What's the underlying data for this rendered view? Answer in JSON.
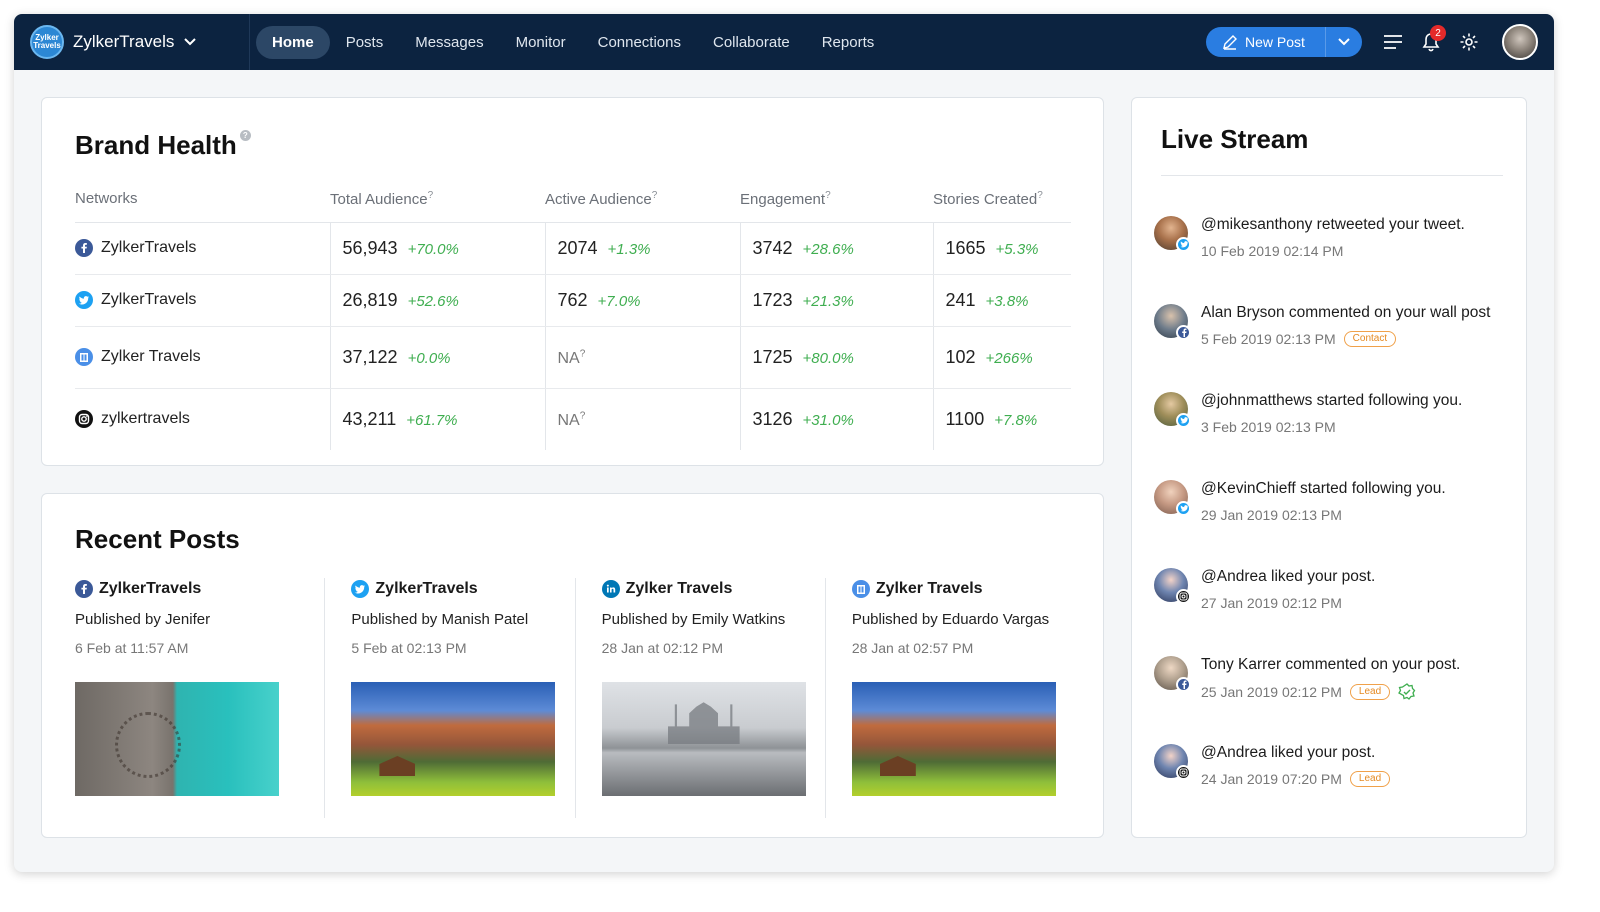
{
  "app": {
    "logo_text": "Zylker Travels",
    "name": "ZylkerTravels"
  },
  "nav": {
    "items": [
      {
        "label": "Home",
        "active": true
      },
      {
        "label": "Posts"
      },
      {
        "label": "Messages"
      },
      {
        "label": "Monitor"
      },
      {
        "label": "Connections"
      },
      {
        "label": "Collaborate"
      },
      {
        "label": "Reports"
      }
    ],
    "new_post_label": "New Post",
    "notifications_count": "2"
  },
  "brand_health": {
    "title": "Brand Health",
    "headers": {
      "networks": "Networks",
      "total_audience": "Total Audience",
      "active_audience": "Active Audience",
      "engagement": "Engagement",
      "stories_created": "Stories Created",
      "help_mark": "?"
    },
    "rows": [
      {
        "network": "ZylkerTravels",
        "icon": "facebook-icon",
        "total": "56,943",
        "total_pct": "+70.0%",
        "active": "2074",
        "active_pct": "+1.3%",
        "engagement": "3742",
        "engagement_pct": "+28.6%",
        "stories": "1665",
        "stories_pct": "+5.3%"
      },
      {
        "network": "ZylkerTravels",
        "icon": "twitter-icon",
        "total": "26,819",
        "total_pct": "+52.6%",
        "active": "762",
        "active_pct": "+7.0%",
        "engagement": "1723",
        "engagement_pct": "+21.3%",
        "stories": "241",
        "stories_pct": "+3.8%"
      },
      {
        "network": "Zylker Travels",
        "icon": "google-mybusiness-icon",
        "total": "37,122",
        "total_pct": "+0.0%",
        "active": "NA",
        "active_pct": "",
        "engagement": "1725",
        "engagement_pct": "+80.0%",
        "stories": "102",
        "stories_pct": "+266%"
      },
      {
        "network": "zylkertravels",
        "icon": "instagram-icon",
        "total": "43,211",
        "total_pct": "+61.7%",
        "active": "NA",
        "active_pct": "",
        "engagement": "3126",
        "engagement_pct": "+31.0%",
        "stories": "1100",
        "stories_pct": "+7.8%"
      }
    ]
  },
  "recent_posts": {
    "title": "Recent Posts",
    "posts": [
      {
        "network": "ZylkerTravels",
        "icon": "facebook-icon",
        "published_by": "Published by Jenifer",
        "date": "6 Feb at 11:57 AM",
        "image": "pool-deck-photo"
      },
      {
        "network": "ZylkerTravels",
        "icon": "twitter-icon",
        "published_by": "Published by Manish Patel",
        "date": "5 Feb at 02:13 PM",
        "image": "mountain-photo"
      },
      {
        "network": "Zylker Travels",
        "icon": "linkedin-icon",
        "published_by": "Published by Emily Watkins",
        "date": "28 Jan at 02:12 PM",
        "image": "taj-mahal-photo"
      },
      {
        "network": "Zylker Travels",
        "icon": "google-mybusiness-icon",
        "published_by": "Published by Eduardo Vargas",
        "date": "28 Jan at 02:57 PM",
        "image": "mountain-photo"
      }
    ]
  },
  "live_stream": {
    "title": "Live Stream",
    "items": [
      {
        "text": "@mikesanthony retweeted your tweet.",
        "time": "10 Feb 2019 02:14 PM",
        "network": "twitter",
        "tag": ""
      },
      {
        "text": "Alan Bryson commented on your wall post",
        "time": "5 Feb 2019 02:13 PM",
        "network": "facebook",
        "tag": "Contact"
      },
      {
        "text": "@johnmatthews started following you.",
        "time": "3 Feb 2019 02:13 PM",
        "network": "twitter",
        "tag": ""
      },
      {
        "text": "@KevinChieff started following you.",
        "time": "29 Jan 2019 02:13 PM",
        "network": "twitter",
        "tag": ""
      },
      {
        "text": "@Andrea liked your post.",
        "time": "27 Jan 2019 02:12 PM",
        "network": "instagram",
        "tag": ""
      },
      {
        "text": "Tony Karrer commented on your post.",
        "time": "25 Jan 2019 02:12 PM",
        "network": "facebook",
        "tag": "Lead"
      },
      {
        "text": "@Andrea liked your post.",
        "time": "24 Jan 2019 07:20 PM",
        "network": "instagram",
        "tag": "Lead"
      }
    ]
  },
  "colors": {
    "topbar": "#0c2340",
    "accent": "#2a7de1",
    "positive": "#3fae50",
    "tag": "#e58a22"
  }
}
